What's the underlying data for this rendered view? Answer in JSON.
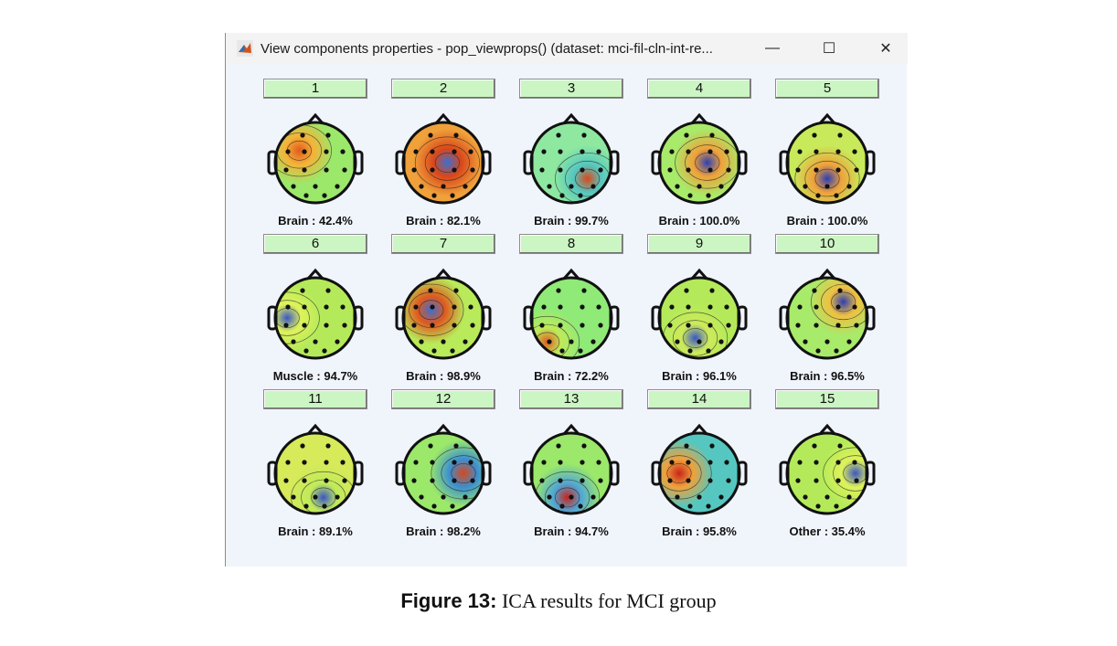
{
  "window": {
    "title": "View components properties - pop_viewprops() (dataset: mci-fil-cln-int-re...",
    "app_icon": "matlab-icon",
    "controls": {
      "minimize": "—",
      "maximize": "☐",
      "close": "✕"
    }
  },
  "components": [
    {
      "number": "1",
      "label": "Brain : 42.4%",
      "palette": [
        "#9be86a",
        "#f5b238",
        "#e05a1e"
      ]
    },
    {
      "number": "2",
      "label": "Brain : 82.1%",
      "palette": [
        "#f0a13a",
        "#d9471a",
        "#3b6fd1"
      ]
    },
    {
      "number": "3",
      "label": "Brain : 99.7%",
      "palette": [
        "#8ee8a0",
        "#55c7c0",
        "#d9471a"
      ]
    },
    {
      "number": "4",
      "label": "Brain : 100.0%",
      "palette": [
        "#a8ea6a",
        "#f0a13a",
        "#2f3fb0"
      ]
    },
    {
      "number": "5",
      "label": "Brain : 100.0%",
      "palette": [
        "#c8ea5a",
        "#f0a13a",
        "#2f3fb0"
      ]
    },
    {
      "number": "6",
      "label": "Muscle : 94.7%",
      "palette": [
        "#b4ea5a",
        "#dff25a",
        "#3b56c4"
      ]
    },
    {
      "number": "7",
      "label": "Brain : 98.9%",
      "palette": [
        "#b8ea5a",
        "#e05a1e",
        "#3b6fd1"
      ]
    },
    {
      "number": "8",
      "label": "Brain : 72.2%",
      "palette": [
        "#8fea78",
        "#bfea5a",
        "#e05a1e"
      ]
    },
    {
      "number": "9",
      "label": "Brain : 96.1%",
      "palette": [
        "#b4ea5a",
        "#cdea5a",
        "#3b56c4"
      ]
    },
    {
      "number": "10",
      "label": "Brain : 96.5%",
      "palette": [
        "#a8ea6a",
        "#f0c040",
        "#2f3fb0"
      ]
    },
    {
      "number": "11",
      "label": "Brain : 89.1%",
      "palette": [
        "#d6ea5a",
        "#c0ea5a",
        "#3b56c4"
      ]
    },
    {
      "number": "12",
      "label": "Brain : 98.2%",
      "palette": [
        "#9be86a",
        "#3b8fd1",
        "#d9471a"
      ]
    },
    {
      "number": "13",
      "label": "Brain : 94.7%",
      "palette": [
        "#9be86a",
        "#4fa6d6",
        "#c8241a"
      ]
    },
    {
      "number": "14",
      "label": "Brain : 95.8%",
      "palette": [
        "#55c7c0",
        "#f0a13a",
        "#c8241a"
      ]
    },
    {
      "number": "15",
      "label": "Other : 35.4%",
      "palette": [
        "#b4ea5a",
        "#dff25a",
        "#3b56c4"
      ]
    }
  ],
  "caption": {
    "figure_label": "Figure 13:",
    "text": "ICA results for MCI group"
  }
}
